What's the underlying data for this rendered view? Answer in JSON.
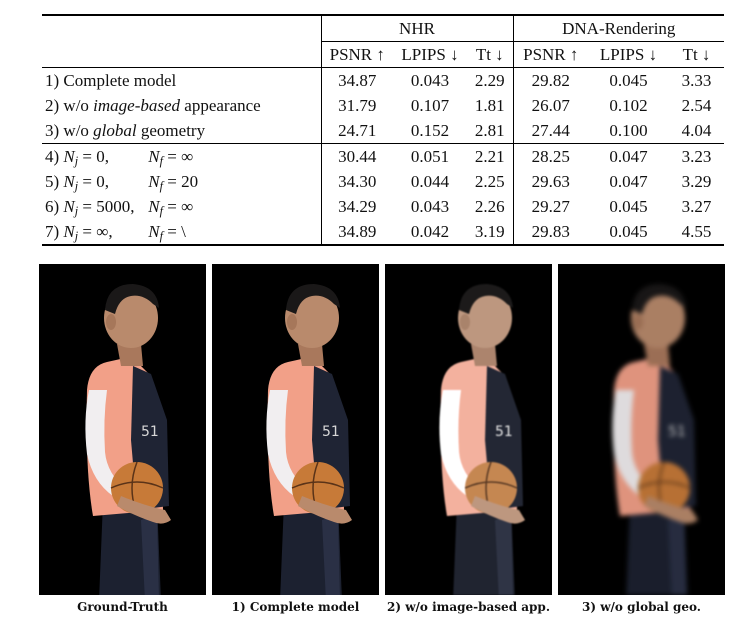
{
  "table": {
    "groups": [
      "NHR",
      "DNA-Rendering"
    ],
    "columns": [
      "PSNR ↑",
      "LPIPS ↓",
      "Tt ↓",
      "PSNR ↑",
      "LPIPS ↓",
      "Tt ↓"
    ],
    "rows": [
      {
        "prefix": "1) ",
        "label": "Complete model",
        "values": [
          "34.87",
          "0.043",
          "2.29",
          "29.82",
          "0.045",
          "3.33"
        ]
      },
      {
        "prefix": "2) w/o ",
        "italic": "image-based",
        "suffix": " appearance",
        "values": [
          "31.79",
          "0.107",
          "1.81",
          "26.07",
          "0.102",
          "2.54"
        ]
      },
      {
        "prefix": "3) w/o ",
        "italic": "global",
        "suffix": " geometry",
        "values": [
          "24.71",
          "0.152",
          "2.81",
          "27.44",
          "0.100",
          "4.04"
        ]
      },
      {
        "prefix": "4) ",
        "nj": "0,",
        "nf": "∞",
        "values": [
          "30.44",
          "0.051",
          "2.21",
          "28.25",
          "0.047",
          "3.23"
        ]
      },
      {
        "prefix": "5) ",
        "nj": "0,",
        "nf": "20",
        "values": [
          "34.30",
          "0.044",
          "2.25",
          "29.63",
          "0.047",
          "3.29"
        ]
      },
      {
        "prefix": "6) ",
        "nj": "5000,",
        "nf": "∞",
        "values": [
          "34.29",
          "0.043",
          "2.26",
          "29.27",
          "0.045",
          "3.27"
        ]
      },
      {
        "prefix": "7) ",
        "nj": "∞,",
        "nf": "\\",
        "values": [
          "34.89",
          "0.042",
          "3.19",
          "29.83",
          "0.045",
          "4.55"
        ]
      }
    ]
  },
  "figures": [
    {
      "caption": "Ground-Truth"
    },
    {
      "caption": "1) Complete model"
    },
    {
      "caption": "2) w/o image-based app."
    },
    {
      "caption": "3) w/o global geo."
    }
  ],
  "colors": {
    "shirt": "#f2a088",
    "jersey": "#1f2434",
    "skin": "#b98a6c",
    "sleeve": "#f1eef0",
    "ball": "#c77a38"
  }
}
